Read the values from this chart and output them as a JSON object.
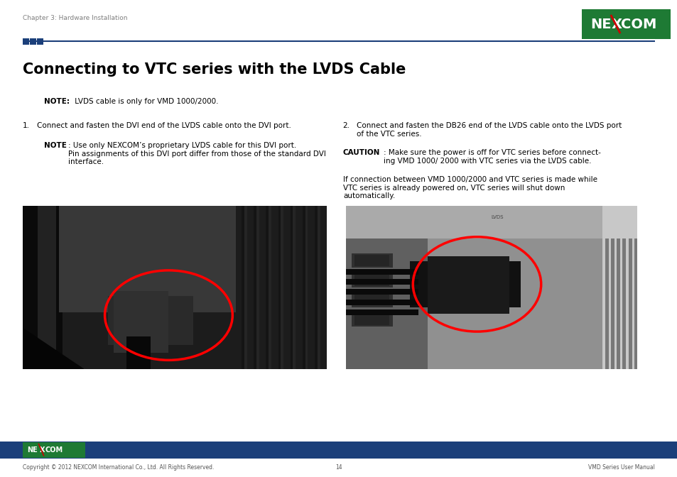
{
  "page_width": 9.54,
  "page_height": 6.72,
  "bg_color": "#ffffff",
  "header_text": "Chapter 3: Hardware Installation",
  "header_text_color": "#7f7f7f",
  "header_text_size": 6.5,
  "divider_color": "#1b3f7a",
  "title": "Connecting to VTC series with the LVDS Cable",
  "title_size": 15,
  "title_color": "#000000",
  "body_size": 7.5,
  "note_bold": "NOTE:",
  "note_text": " LVDS cable is only for VMD 1000/2000.",
  "item1_text": "Connect and fasten the DVI end of the LVDS cable onto the DVI port.",
  "item1_sub_bold": "NOTE",
  "item1_sub_text": ": Use only NEXCOM’s proprietary LVDS cable for this DVI port.\nPin assignments of this DVI port differ from those of the standard DVI\ninterface.",
  "item2_text": "Connect and fasten the DB26 end of the LVDS cable onto the LVDS port\nof the VTC series.",
  "item2_caution_bold": "CAUTION",
  "item2_caution_text": ": Make sure the power is off for VTC series before connect-\ning VMD 1000/ 2000 with VTC series via the LVDS cable.",
  "item2_extra_text": "If connection between VMD 1000/2000 and VTC series is made while\nVTC series is already powered on, VTC series will shut down\nautomatically.",
  "footer_bar_color": "#1b3f7a",
  "footer_copyright": "Copyright © 2012 NEXCOM International Co., Ltd. All Rights Reserved.",
  "footer_page": "14",
  "footer_manual": "VMD Series User Manual",
  "footer_text_color": "#555555",
  "logo_green": "#1e7a34",
  "logo_red": "#cc0000"
}
